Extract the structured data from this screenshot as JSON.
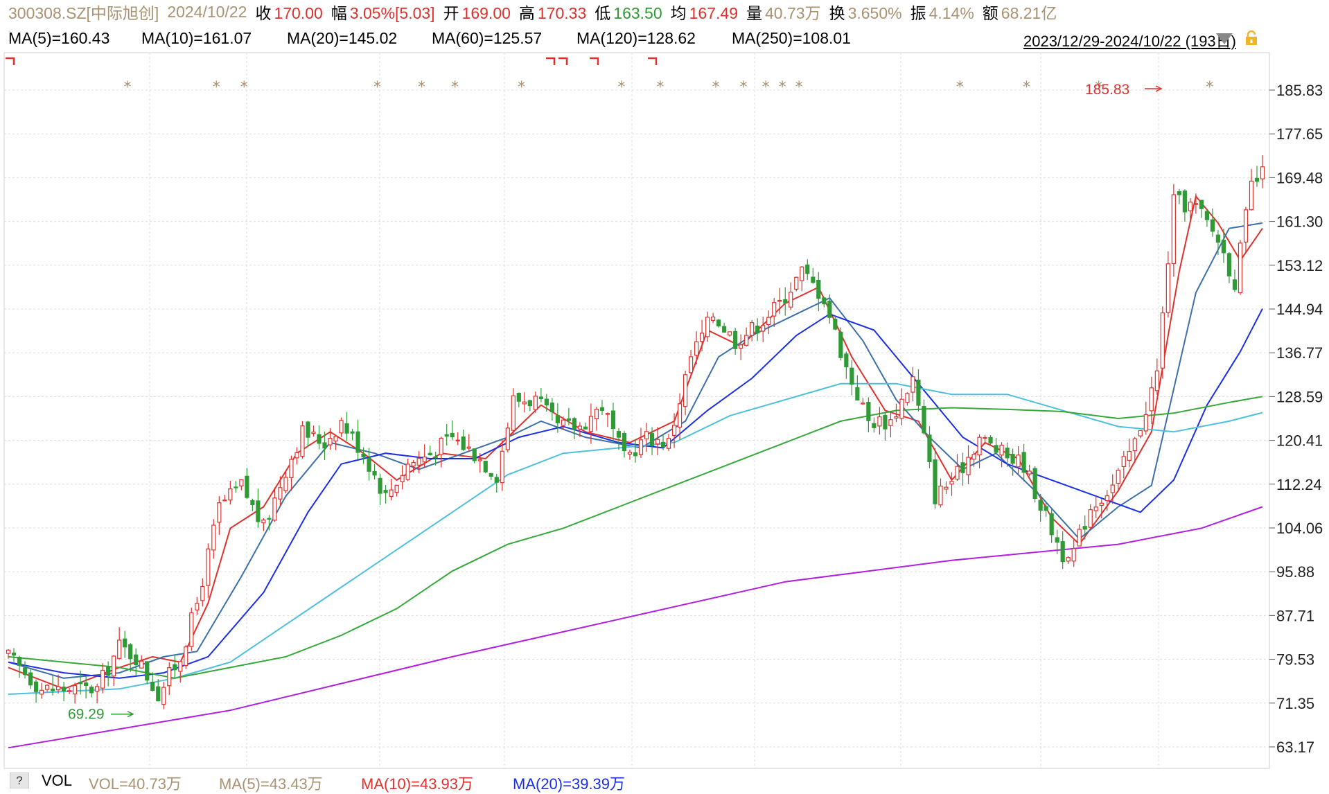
{
  "info": {
    "code": "300308.SZ[中际旭创]",
    "date": "2024/10/22",
    "close_label": "收",
    "close": "170.00",
    "chg_label": "幅",
    "chg": "3.05%[5.03]",
    "open_label": "开",
    "open": "169.00",
    "high_label": "高",
    "high": "170.33",
    "low_label": "低",
    "low": "163.50",
    "avg_label": "均",
    "avg": "167.49",
    "vol_label": "量",
    "vol": "40.73万",
    "turn_label": "换",
    "turn": "3.650%",
    "amp_label": "振",
    "amp": "4.14%",
    "amt_label": "额",
    "amt": "68.21亿"
  },
  "ma_legend": [
    {
      "text": "MA(5)=160.43",
      "color": "#e0302c"
    },
    {
      "text": "MA(10)=161.07",
      "color": "#3d6fa8"
    },
    {
      "text": "MA(20)=145.02",
      "color": "#1a2ee6"
    },
    {
      "text": "MA(60)=125.57",
      "color": "#4dbfdc"
    },
    {
      "text": "MA(120)=128.62",
      "color": "#36a83a"
    },
    {
      "text": "MA(250)=108.01",
      "color": "#b21ee0"
    }
  ],
  "date_range": "2023/12/29-2024/10/22 (193日)",
  "volume_legend": {
    "q": "?",
    "title": "VOL",
    "vol": "VOL=40.73万",
    "ma5": "MA(5)=43.43万",
    "ma10": "MA(10)=43.93万",
    "ma20": "MA(20)=39.39万"
  },
  "colors": {
    "up": "#e0302c",
    "down": "#2f9a36",
    "grid": "#dcdcdc",
    "star": "#a99272"
  },
  "chart_data": {
    "type": "candlestick",
    "y_ticks": [
      "185.83",
      "177.65",
      "169.48",
      "161.30",
      "153.12",
      "144.94",
      "136.77",
      "128.59",
      "120.41",
      "112.24",
      "104.06",
      "95.88",
      "87.71",
      "79.53",
      "71.35",
      "63.17"
    ],
    "ylim": [
      63.17,
      185.83
    ],
    "annotations": [
      {
        "text": "185.83",
        "color": "#e0302c"
      },
      {
        "text": "69.29",
        "color": "#2f9a36"
      }
    ],
    "anchors_close": [
      [
        0,
        80
      ],
      [
        6,
        74
      ],
      [
        12,
        74
      ],
      [
        16,
        74
      ],
      [
        20,
        82
      ],
      [
        23,
        80
      ],
      [
        27,
        73
      ],
      [
        31,
        80
      ],
      [
        34,
        90
      ],
      [
        38,
        108
      ],
      [
        42,
        112
      ],
      [
        46,
        104
      ],
      [
        50,
        115
      ],
      [
        53,
        122
      ],
      [
        57,
        120
      ],
      [
        60,
        124
      ],
      [
        64,
        118
      ],
      [
        68,
        110
      ],
      [
        72,
        116
      ],
      [
        76,
        118
      ],
      [
        80,
        121
      ],
      [
        84,
        118
      ],
      [
        88,
        114
      ],
      [
        91,
        128
      ],
      [
        95,
        128
      ],
      [
        99,
        123
      ],
      [
        103,
        123
      ],
      [
        107,
        127
      ],
      [
        111,
        117
      ],
      [
        115,
        121
      ],
      [
        119,
        120
      ],
      [
        123,
        136
      ],
      [
        127,
        144
      ],
      [
        131,
        139
      ],
      [
        135,
        142
      ],
      [
        139,
        146
      ],
      [
        143,
        152
      ],
      [
        147,
        147
      ],
      [
        151,
        134
      ],
      [
        155,
        124
      ],
      [
        159,
        124
      ],
      [
        163,
        132
      ],
      [
        167,
        110
      ],
      [
        171,
        114
      ],
      [
        175,
        121
      ],
      [
        179,
        118
      ],
      [
        183,
        116
      ],
      [
        187,
        106
      ],
      [
        191,
        97
      ],
      [
        195,
        108
      ],
      [
        199,
        112
      ],
      [
        203,
        120
      ],
      [
        207,
        133
      ],
      [
        210,
        165
      ],
      [
        214,
        164
      ],
      [
        218,
        158
      ],
      [
        221,
        150
      ],
      [
        224,
        168
      ],
      [
        226,
        170
      ]
    ],
    "ma": {
      "MA(5)": {
        "color": "#e0302c",
        "pts": [
          [
            0,
            78
          ],
          [
            10,
            74
          ],
          [
            20,
            78
          ],
          [
            26,
            80
          ],
          [
            31,
            79
          ],
          [
            36,
            90
          ],
          [
            40,
            104
          ],
          [
            46,
            108
          ],
          [
            52,
            118
          ],
          [
            58,
            122
          ],
          [
            64,
            118
          ],
          [
            70,
            113
          ],
          [
            78,
            118
          ],
          [
            86,
            117
          ],
          [
            90,
            121
          ],
          [
            96,
            127
          ],
          [
            104,
            122
          ],
          [
            112,
            120
          ],
          [
            120,
            124
          ],
          [
            126,
            141
          ],
          [
            132,
            138
          ],
          [
            140,
            146
          ],
          [
            146,
            149
          ],
          [
            152,
            136
          ],
          [
            158,
            126
          ],
          [
            164,
            124
          ],
          [
            170,
            113
          ],
          [
            176,
            120
          ],
          [
            182,
            117
          ],
          [
            188,
            106
          ],
          [
            193,
            101
          ],
          [
            200,
            111
          ],
          [
            206,
            122
          ],
          [
            211,
            152
          ],
          [
            214,
            166
          ],
          [
            218,
            161
          ],
          [
            222,
            154
          ],
          [
            226,
            160
          ]
        ]
      },
      "MA(10)": {
        "color": "#3d6fa8",
        "pts": [
          [
            0,
            79
          ],
          [
            10,
            76
          ],
          [
            20,
            77
          ],
          [
            28,
            80
          ],
          [
            34,
            81
          ],
          [
            42,
            95
          ],
          [
            50,
            110
          ],
          [
            58,
            120
          ],
          [
            66,
            118
          ],
          [
            74,
            115
          ],
          [
            82,
            118
          ],
          [
            90,
            121
          ],
          [
            96,
            124
          ],
          [
            104,
            121
          ],
          [
            114,
            119
          ],
          [
            122,
            124
          ],
          [
            128,
            136
          ],
          [
            134,
            140
          ],
          [
            142,
            144
          ],
          [
            148,
            147
          ],
          [
            154,
            139
          ],
          [
            160,
            128
          ],
          [
            166,
            121
          ],
          [
            172,
            115
          ],
          [
            178,
            118
          ],
          [
            186,
            110
          ],
          [
            193,
            102
          ],
          [
            200,
            108
          ],
          [
            206,
            112
          ],
          [
            210,
            130
          ],
          [
            214,
            148
          ],
          [
            220,
            160
          ],
          [
            226,
            161
          ]
        ]
      },
      "MA(20)": {
        "color": "#1a2ee6",
        "pts": [
          [
            0,
            79
          ],
          [
            10,
            77
          ],
          [
            20,
            76
          ],
          [
            28,
            77
          ],
          [
            36,
            80
          ],
          [
            46,
            92
          ],
          [
            54,
            107
          ],
          [
            60,
            116
          ],
          [
            68,
            118
          ],
          [
            76,
            117
          ],
          [
            84,
            117
          ],
          [
            92,
            121
          ],
          [
            100,
            123
          ],
          [
            110,
            120
          ],
          [
            118,
            119
          ],
          [
            126,
            126
          ],
          [
            134,
            132
          ],
          [
            142,
            140
          ],
          [
            148,
            144
          ],
          [
            156,
            141
          ],
          [
            164,
            131
          ],
          [
            172,
            121
          ],
          [
            180,
            116
          ],
          [
            188,
            113
          ],
          [
            196,
            110
          ],
          [
            204,
            107
          ],
          [
            210,
            113
          ],
          [
            216,
            127
          ],
          [
            222,
            137
          ],
          [
            226,
            145
          ]
        ]
      },
      "MA(60)": {
        "color": "#4dbfdc",
        "pts": [
          [
            0,
            73
          ],
          [
            20,
            74
          ],
          [
            30,
            76
          ],
          [
            40,
            79
          ],
          [
            50,
            86
          ],
          [
            60,
            93
          ],
          [
            70,
            100
          ],
          [
            80,
            107
          ],
          [
            90,
            114
          ],
          [
            100,
            118
          ],
          [
            110,
            119
          ],
          [
            120,
            120
          ],
          [
            130,
            125
          ],
          [
            140,
            128
          ],
          [
            150,
            131
          ],
          [
            160,
            131
          ],
          [
            170,
            129
          ],
          [
            180,
            129
          ],
          [
            190,
            126
          ],
          [
            200,
            123
          ],
          [
            210,
            122
          ],
          [
            220,
            124
          ],
          [
            226,
            125.6
          ]
        ]
      },
      "MA(120)": {
        "color": "#36a83a",
        "pts": [
          [
            0,
            80
          ],
          [
            20,
            78
          ],
          [
            30,
            76
          ],
          [
            40,
            78
          ],
          [
            50,
            80
          ],
          [
            60,
            84
          ],
          [
            70,
            89
          ],
          [
            80,
            96
          ],
          [
            90,
            101
          ],
          [
            100,
            104
          ],
          [
            110,
            108
          ],
          [
            120,
            112
          ],
          [
            130,
            116
          ],
          [
            140,
            120
          ],
          [
            150,
            124
          ],
          [
            160,
            126
          ],
          [
            170,
            126.5
          ],
          [
            180,
            126.2
          ],
          [
            190,
            125.8
          ],
          [
            200,
            124.5
          ],
          [
            210,
            125.5
          ],
          [
            220,
            127.5
          ],
          [
            226,
            128.6
          ]
        ]
      },
      "MA(250)": {
        "color": "#b21ee0",
        "pts": [
          [
            0,
            63
          ],
          [
            40,
            70
          ],
          [
            80,
            80
          ],
          [
            110,
            87
          ],
          [
            140,
            94
          ],
          [
            170,
            98
          ],
          [
            200,
            101
          ],
          [
            215,
            104
          ],
          [
            226,
            108
          ]
        ]
      }
    }
  }
}
